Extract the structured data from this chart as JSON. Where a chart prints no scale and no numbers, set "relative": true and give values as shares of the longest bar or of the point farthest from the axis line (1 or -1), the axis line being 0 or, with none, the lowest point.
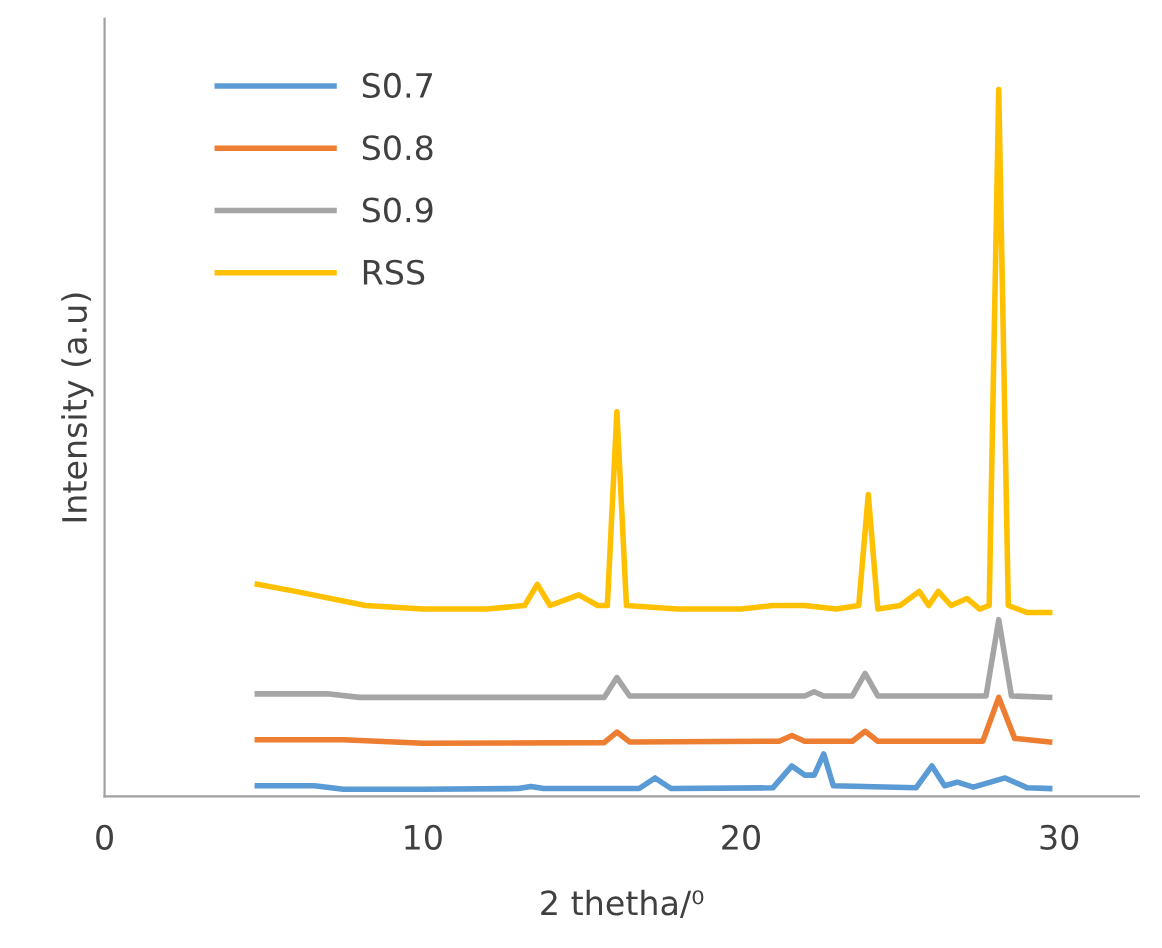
{
  "chart_data": {
    "type": "line",
    "relative": true,
    "xlabel": "2 thetha/⁰",
    "ylabel": "Intensity (a.u)",
    "xlim": [
      0,
      32.5
    ],
    "xticks": [
      0,
      10,
      20,
      30
    ],
    "legend": "top left",
    "grid": false,
    "marker": "none",
    "line_style": "solid",
    "series": [
      {
        "name": "S0.7",
        "color": "#5b9bd5",
        "x": [
          4.8,
          6.6,
          7.5,
          10,
          13.0,
          13.4,
          13.8,
          16.8,
          17.3,
          17.8,
          21.0,
          21.6,
          22.0,
          22.3,
          22.6,
          22.9,
          25.5,
          26.0,
          26.4,
          26.8,
          27.3,
          28.3,
          29.0,
          29.7
        ],
        "values": [
          0.015,
          0.015,
          0.01,
          0.01,
          0.011,
          0.014,
          0.011,
          0.011,
          0.026,
          0.011,
          0.012,
          0.043,
          0.03,
          0.03,
          0.06,
          0.015,
          0.012,
          0.043,
          0.015,
          0.02,
          0.013,
          0.026,
          0.012,
          0.011
        ]
      },
      {
        "name": "S0.8",
        "color": "#ed7d31",
        "x": [
          4.8,
          7.5,
          10,
          15.7,
          16.1,
          16.5,
          21.2,
          21.6,
          22.0,
          23.5,
          23.9,
          24.3,
          27.6,
          28.1,
          28.6,
          29.7
        ],
        "values": [
          0.08,
          0.08,
          0.075,
          0.076,
          0.091,
          0.077,
          0.078,
          0.086,
          0.078,
          0.078,
          0.092,
          0.078,
          0.078,
          0.14,
          0.082,
          0.077
        ]
      },
      {
        "name": "S0.9",
        "color": "#a5a5a5",
        "x": [
          4.8,
          7.0,
          8.0,
          15.7,
          16.1,
          16.5,
          22.0,
          22.3,
          22.6,
          23.5,
          23.9,
          24.3,
          27.7,
          28.1,
          28.5,
          29.7
        ],
        "values": [
          0.145,
          0.145,
          0.14,
          0.14,
          0.168,
          0.142,
          0.142,
          0.148,
          0.142,
          0.142,
          0.174,
          0.142,
          0.142,
          0.25,
          0.142,
          0.14
        ]
      },
      {
        "name": "RSS",
        "color": "#ffc000",
        "x": [
          4.8,
          6.0,
          8.2,
          10,
          12,
          13.2,
          13.6,
          14.0,
          14.9,
          15.5,
          15.8,
          16.1,
          16.4,
          18,
          20,
          21,
          22,
          23,
          23.7,
          24.0,
          24.3,
          25.0,
          25.6,
          25.9,
          26.2,
          26.6,
          27.1,
          27.5,
          27.8,
          28.1,
          28.4,
          29,
          29.7
        ],
        "values": [
          0.3,
          0.29,
          0.27,
          0.265,
          0.265,
          0.27,
          0.3,
          0.27,
          0.285,
          0.27,
          0.27,
          0.544,
          0.27,
          0.265,
          0.265,
          0.27,
          0.27,
          0.265,
          0.27,
          0.427,
          0.265,
          0.27,
          0.29,
          0.27,
          0.29,
          0.27,
          0.28,
          0.265,
          0.27,
          1.0,
          0.27,
          0.26,
          0.26
        ]
      }
    ]
  }
}
